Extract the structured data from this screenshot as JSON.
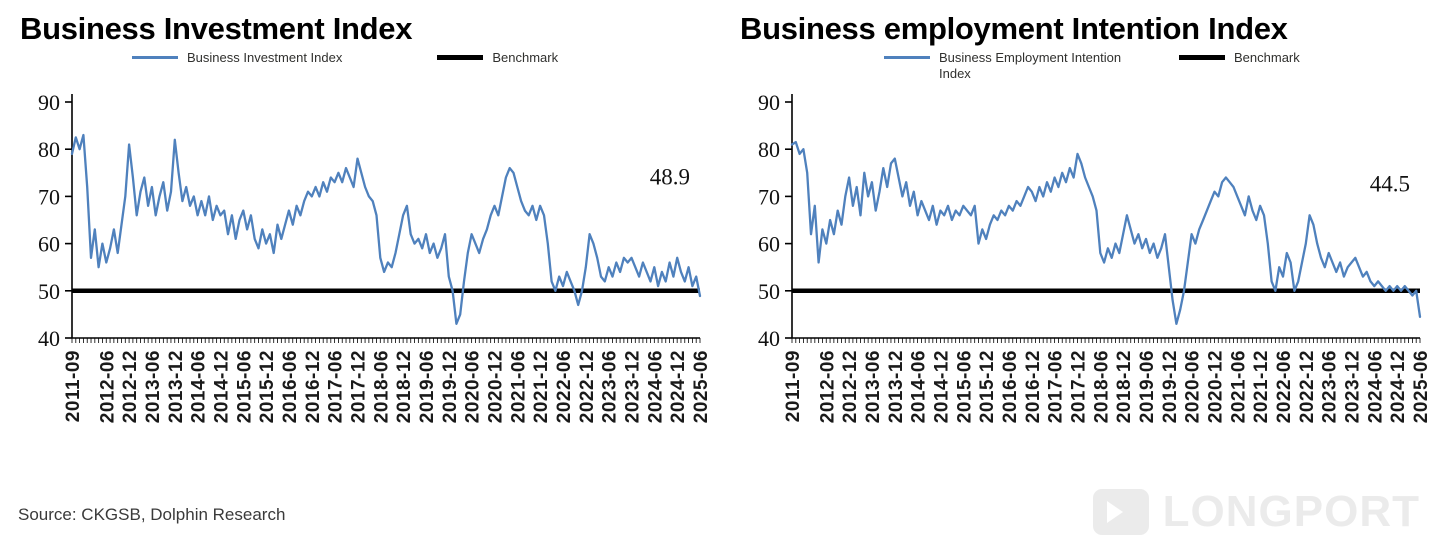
{
  "page": {
    "source_text": "Source: CKGSB, Dolphin Research",
    "watermark_text": "LONGPORT"
  },
  "chart_data": [
    {
      "type": "line",
      "title": "Business Investment Index",
      "ylim": [
        40,
        90
      ],
      "y_ticks": [
        90,
        80,
        70,
        60,
        50,
        40
      ],
      "grid": false,
      "legend_position": "top",
      "annotation": {
        "text": "48.9",
        "value": 72.5
      },
      "x_tick_labels": [
        "2011-09",
        "2012-06",
        "2012-12",
        "2013-06",
        "2013-12",
        "2014-06",
        "2014-12",
        "2015-06",
        "2015-12",
        "2016-06",
        "2016-12",
        "2017-06",
        "2017-12",
        "2018-06",
        "2018-12",
        "2019-06",
        "2019-12",
        "2020-06",
        "2020-12",
        "2021-06",
        "2021-12",
        "2022-06",
        "2022-12",
        "2023-06",
        "2023-12",
        "2024-06",
        "2024-12",
        "2025-06"
      ],
      "series": [
        {
          "name": "Business Investment Index",
          "color": "#4f81bd",
          "x_start": "2011-09",
          "frequency": "monthly",
          "values": [
            79,
            82.5,
            80,
            83,
            72,
            57,
            63,
            55,
            60,
            56,
            59,
            63,
            58,
            64,
            70,
            81,
            74,
            66,
            71,
            74,
            68,
            72,
            66,
            70,
            73,
            67,
            71,
            82,
            75,
            69,
            72,
            68,
            70,
            66,
            69,
            66,
            70,
            65,
            68,
            66,
            67,
            62,
            66,
            61,
            65,
            67,
            63,
            66,
            61,
            59,
            63,
            60,
            62,
            58,
            64,
            61,
            64,
            67,
            64,
            68,
            66,
            69,
            71,
            70,
            72,
            70,
            73,
            71,
            74,
            73,
            75,
            73,
            76,
            74,
            72,
            78,
            75,
            72,
            70,
            69,
            66,
            57,
            54,
            56,
            55,
            58,
            62,
            66,
            68,
            62,
            60,
            61,
            59,
            62,
            58,
            60,
            57,
            59,
            62,
            53,
            50,
            43,
            45,
            52,
            58,
            62,
            60,
            58,
            61,
            63,
            66,
            68,
            66,
            70,
            74,
            76,
            75,
            72,
            69,
            67,
            66,
            68,
            65,
            68,
            66,
            60,
            52,
            50,
            53,
            51,
            54,
            52,
            50,
            47,
            50,
            55,
            62,
            60,
            57,
            53,
            52,
            55,
            53,
            56,
            54,
            57,
            56,
            57,
            55,
            53,
            56,
            54,
            52,
            55,
            51,
            54,
            52,
            56,
            53,
            57,
            54,
            52,
            55,
            51,
            53,
            48.9
          ]
        },
        {
          "name": "Benchmark",
          "color": "#000000",
          "constant": 50
        }
      ]
    },
    {
      "type": "line",
      "title": "Business employment Intention Index",
      "ylim": [
        40,
        90
      ],
      "y_ticks": [
        90,
        80,
        70,
        60,
        50,
        40
      ],
      "grid": false,
      "legend_position": "top",
      "annotation": {
        "text": "44.5",
        "value": 71
      },
      "x_tick_labels": [
        "2011-09",
        "2012-06",
        "2012-12",
        "2013-06",
        "2013-12",
        "2014-06",
        "2014-12",
        "2015-06",
        "2015-12",
        "2016-06",
        "2016-12",
        "2017-06",
        "2017-12",
        "2018-06",
        "2018-12",
        "2019-06",
        "2019-12",
        "2020-06",
        "2020-12",
        "2021-06",
        "2021-12",
        "2022-06",
        "2022-12",
        "2023-06",
        "2023-12",
        "2024-06",
        "2024-12",
        "2025-06"
      ],
      "series": [
        {
          "name": "Business Employment Intention Index",
          "color": "#4f81bd",
          "x_start": "2011-09",
          "frequency": "monthly",
          "values": [
            81,
            81.5,
            79,
            80,
            75,
            62,
            68,
            56,
            63,
            60,
            65,
            62,
            67,
            64,
            70,
            74,
            68,
            72,
            66,
            75,
            70,
            73,
            67,
            71,
            76,
            72,
            77,
            78,
            74,
            70,
            73,
            68,
            71,
            66,
            69,
            67,
            65,
            68,
            64,
            67,
            66,
            68,
            65,
            67,
            66,
            68,
            67,
            66,
            68,
            60,
            63,
            61,
            64,
            66,
            65,
            67,
            66,
            68,
            67,
            69,
            68,
            70,
            72,
            71,
            69,
            72,
            70,
            73,
            71,
            74,
            72,
            75,
            73,
            76,
            74,
            79,
            77,
            74,
            72,
            70,
            67,
            58,
            56,
            59,
            57,
            60,
            58,
            62,
            66,
            63,
            60,
            62,
            59,
            61,
            58,
            60,
            57,
            59,
            62,
            55,
            48,
            43,
            46,
            50,
            56,
            62,
            60,
            63,
            65,
            67,
            69,
            71,
            70,
            73,
            74,
            73,
            72,
            70,
            68,
            66,
            70,
            67,
            65,
            68,
            66,
            60,
            52,
            50,
            55,
            53,
            58,
            56,
            50,
            52,
            56,
            60,
            66,
            64,
            60,
            57,
            55,
            58,
            56,
            54,
            56,
            53,
            55,
            56,
            57,
            55,
            53,
            54,
            52,
            51,
            52,
            51,
            50,
            51,
            50,
            51,
            50,
            51,
            50,
            49,
            50,
            44.5
          ]
        },
        {
          "name": "Benchmark",
          "color": "#000000",
          "constant": 50
        }
      ]
    }
  ]
}
